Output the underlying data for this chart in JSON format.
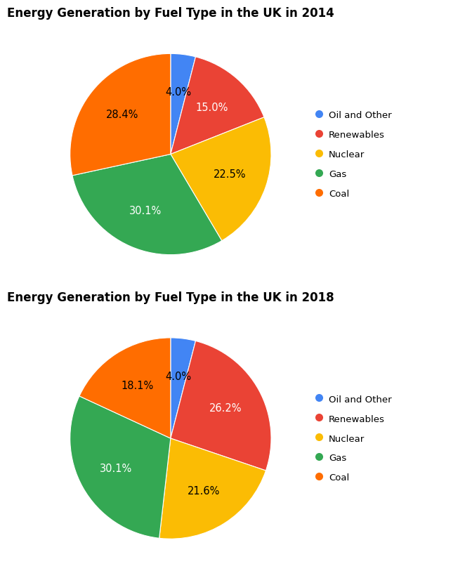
{
  "chart2014": {
    "title": "Energy Generation by Fuel Type in the UK in 2014",
    "labels": [
      "Oil and Other",
      "Renewables",
      "Nuclear",
      "Gas",
      "Coal"
    ],
    "values": [
      4.0,
      15.0,
      22.5,
      30.1,
      28.4
    ],
    "colors": [
      "#4285F4",
      "#EA4335",
      "#FBBC04",
      "#34A853",
      "#FF6D00"
    ],
    "text_colors": [
      "black",
      "white",
      "black",
      "white",
      "black"
    ]
  },
  "chart2018": {
    "title": "Energy Generation by Fuel Type in the UK in 2018",
    "labels": [
      "Oil and Other",
      "Renewables",
      "Nuclear",
      "Gas",
      "Coal"
    ],
    "values": [
      4.0,
      26.2,
      21.6,
      30.1,
      18.1
    ],
    "colors": [
      "#4285F4",
      "#EA4335",
      "#FBBC04",
      "#34A853",
      "#FF6D00"
    ],
    "text_colors": [
      "black",
      "white",
      "black",
      "white",
      "black"
    ]
  },
  "legend_labels": [
    "Oil and Other",
    "Renewables",
    "Nuclear",
    "Gas",
    "Coal"
  ],
  "legend_colors": [
    "#4285F4",
    "#EA4335",
    "#FBBC04",
    "#34A853",
    "#FF6D00"
  ],
  "label_fontsize": 10.5,
  "title_fontsize": 12,
  "legend_fontsize": 9.5,
  "startangle": 90
}
